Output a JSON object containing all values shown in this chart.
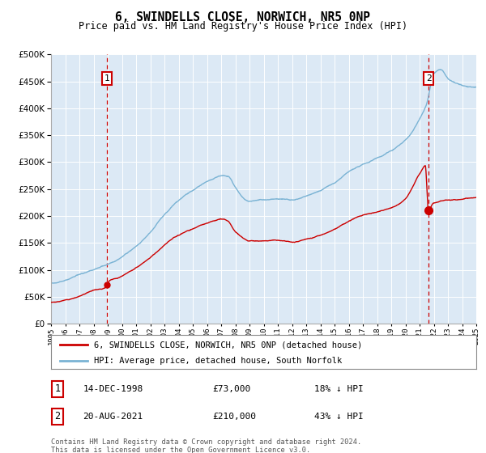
{
  "title": "6, SWINDELLS CLOSE, NORWICH, NR5 0NP",
  "subtitle": "Price paid vs. HM Land Registry's House Price Index (HPI)",
  "legend_line1": "6, SWINDELLS CLOSE, NORWICH, NR5 0NP (detached house)",
  "legend_line2": "HPI: Average price, detached house, South Norfolk",
  "annotation1_date": "14-DEC-1998",
  "annotation1_price": "£73,000",
  "annotation1_hpi": "18% ↓ HPI",
  "annotation2_date": "20-AUG-2021",
  "annotation2_price": "£210,000",
  "annotation2_hpi": "43% ↓ HPI",
  "footer": "Contains HM Land Registry data © Crown copyright and database right 2024.\nThis data is licensed under the Open Government Licence v3.0.",
  "hpi_color": "#7ab3d4",
  "price_color": "#cc0000",
  "vline_color": "#cc0000",
  "plot_bg_color": "#dce9f5",
  "ylim": [
    0,
    500000
  ],
  "yticks": [
    0,
    50000,
    100000,
    150000,
    200000,
    250000,
    300000,
    350000,
    400000,
    450000,
    500000
  ],
  "sale1_year": 1998.96,
  "sale1_price": 73000,
  "sale2_year": 2021.64,
  "sale2_price": 210000
}
